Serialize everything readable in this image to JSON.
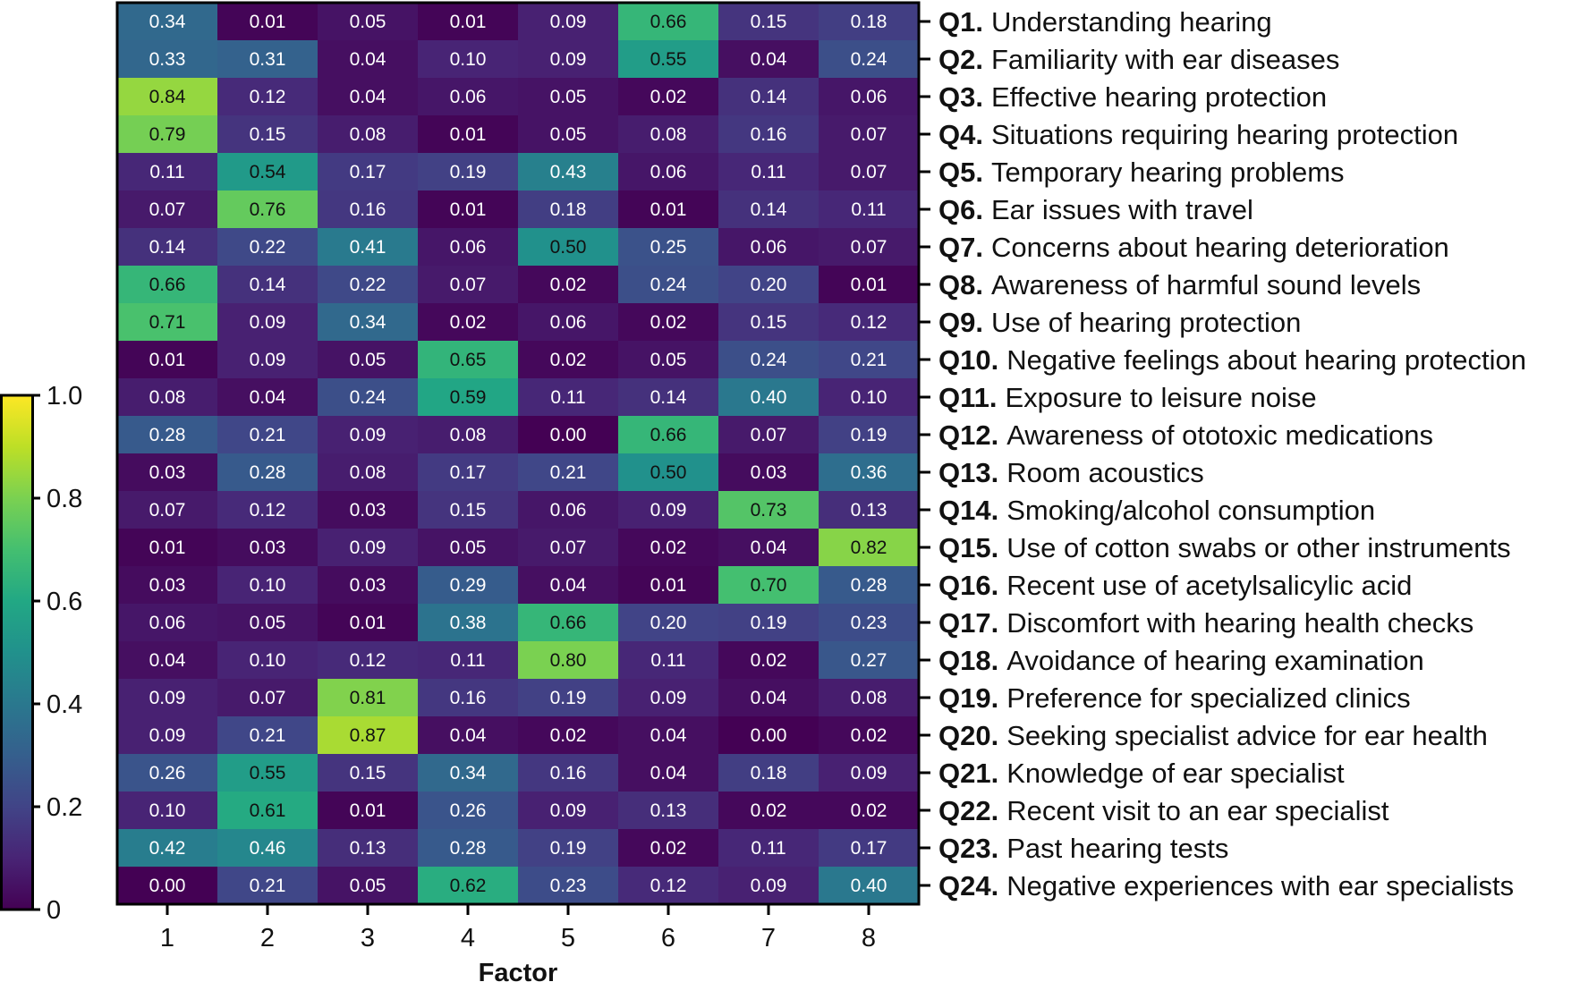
{
  "chart_data": {
    "type": "heatmap",
    "xlabel": "Factor",
    "ylabel": "",
    "factors": [
      "1",
      "2",
      "3",
      "4",
      "5",
      "6",
      "7",
      "8"
    ],
    "colorbar": {
      "range": [
        0,
        1.0
      ],
      "ticks": [
        "0",
        "0.2",
        "0.4",
        "0.6",
        "0.8",
        "1.0"
      ],
      "colormap": "viridis"
    },
    "rows": [
      {
        "id": "Q1.",
        "label": "Understanding hearing",
        "values": [
          "0.34",
          "0.01",
          "0.05",
          "0.01",
          "0.09",
          "0.66",
          "0.15",
          "0.18"
        ]
      },
      {
        "id": "Q2.",
        "label": "Familiarity with ear diseases",
        "values": [
          "0.33",
          "0.31",
          "0.04",
          "0.10",
          "0.09",
          "0.55",
          "0.04",
          "0.24"
        ]
      },
      {
        "id": "Q3.",
        "label": "Effective hearing protection",
        "values": [
          "0.84",
          "0.12",
          "0.04",
          "0.06",
          "0.05",
          "0.02",
          "0.14",
          "0.06"
        ]
      },
      {
        "id": "Q4.",
        "label": "Situations requiring hearing protection",
        "values": [
          "0.79",
          "0.15",
          "0.08",
          "0.01",
          "0.05",
          "0.08",
          "0.16",
          "0.07"
        ]
      },
      {
        "id": "Q5.",
        "label": "Temporary hearing problems",
        "values": [
          "0.11",
          "0.54",
          "0.17",
          "0.19",
          "0.43",
          "0.06",
          "0.11",
          "0.07"
        ]
      },
      {
        "id": "Q6.",
        "label": "Ear issues with travel",
        "values": [
          "0.07",
          "0.76",
          "0.16",
          "0.01",
          "0.18",
          "0.01",
          "0.14",
          "0.11"
        ]
      },
      {
        "id": "Q7.",
        "label": "Concerns about hearing deterioration",
        "values": [
          "0.14",
          "0.22",
          "0.41",
          "0.06",
          "0.50",
          "0.25",
          "0.06",
          "0.07"
        ]
      },
      {
        "id": "Q8.",
        "label": "Awareness of harmful sound levels",
        "values": [
          "0.66",
          "0.14",
          "0.22",
          "0.07",
          "0.02",
          "0.24",
          "0.20",
          "0.01"
        ]
      },
      {
        "id": "Q9.",
        "label": "Use of hearing protection",
        "values": [
          "0.71",
          "0.09",
          "0.34",
          "0.02",
          "0.06",
          "0.02",
          "0.15",
          "0.12"
        ]
      },
      {
        "id": "Q10.",
        "label": "Negative feelings about hearing protection",
        "values": [
          "0.01",
          "0.09",
          "0.05",
          "0.65",
          "0.02",
          "0.05",
          "0.24",
          "0.21"
        ]
      },
      {
        "id": "Q11.",
        "label": "Exposure to leisure noise",
        "values": [
          "0.08",
          "0.04",
          "0.24",
          "0.59",
          "0.11",
          "0.14",
          "0.40",
          "0.10"
        ]
      },
      {
        "id": "Q12.",
        "label": "Awareness of ototoxic medications",
        "values": [
          "0.28",
          "0.21",
          "0.09",
          "0.08",
          "0.00",
          "0.66",
          "0.07",
          "0.19"
        ]
      },
      {
        "id": "Q13.",
        "label": "Room acoustics",
        "values": [
          "0.03",
          "0.28",
          "0.08",
          "0.17",
          "0.21",
          "0.50",
          "0.03",
          "0.36"
        ]
      },
      {
        "id": "Q14.",
        "label": "Smoking/alcohol consumption",
        "values": [
          "0.07",
          "0.12",
          "0.03",
          "0.15",
          "0.06",
          "0.09",
          "0.73",
          "0.13"
        ]
      },
      {
        "id": "Q15.",
        "label": "Use of cotton swabs or other instruments",
        "values": [
          "0.01",
          "0.03",
          "0.09",
          "0.05",
          "0.07",
          "0.02",
          "0.04",
          "0.82"
        ]
      },
      {
        "id": "Q16.",
        "label": "Recent use of acetylsalicylic acid",
        "values": [
          "0.03",
          "0.10",
          "0.03",
          "0.29",
          "0.04",
          "0.01",
          "0.70",
          "0.28"
        ]
      },
      {
        "id": "Q17.",
        "label": "Discomfort with hearing health checks",
        "values": [
          "0.06",
          "0.05",
          "0.01",
          "0.38",
          "0.66",
          "0.20",
          "0.19",
          "0.23"
        ]
      },
      {
        "id": "Q18.",
        "label": "Avoidance of hearing examination",
        "values": [
          "0.04",
          "0.10",
          "0.12",
          "0.11",
          "0.80",
          "0.11",
          "0.02",
          "0.27"
        ]
      },
      {
        "id": "Q19.",
        "label": "Preference for specialized clinics",
        "values": [
          "0.09",
          "0.07",
          "0.81",
          "0.16",
          "0.19",
          "0.09",
          "0.04",
          "0.08"
        ]
      },
      {
        "id": "Q20.",
        "label": "Seeking specialist advice for ear health",
        "values": [
          "0.09",
          "0.21",
          "0.87",
          "0.04",
          "0.02",
          "0.04",
          "0.00",
          "0.02"
        ]
      },
      {
        "id": "Q21.",
        "label": "Knowledge of ear specialist",
        "values": [
          "0.26",
          "0.55",
          "0.15",
          "0.34",
          "0.16",
          "0.04",
          "0.18",
          "0.09"
        ]
      },
      {
        "id": "Q22.",
        "label": "Recent visit to an ear specialist",
        "values": [
          "0.10",
          "0.61",
          "0.01",
          "0.26",
          "0.09",
          "0.13",
          "0.02",
          "0.02"
        ]
      },
      {
        "id": "Q23.",
        "label": "Past hearing tests",
        "values": [
          "0.42",
          "0.46",
          "0.13",
          "0.28",
          "0.19",
          "0.02",
          "0.11",
          "0.17"
        ]
      },
      {
        "id": "Q24.",
        "label": "Negative experiences with ear specialists",
        "values": [
          "0.00",
          "0.21",
          "0.05",
          "0.62",
          "0.23",
          "0.12",
          "0.09",
          "0.40"
        ]
      }
    ]
  }
}
